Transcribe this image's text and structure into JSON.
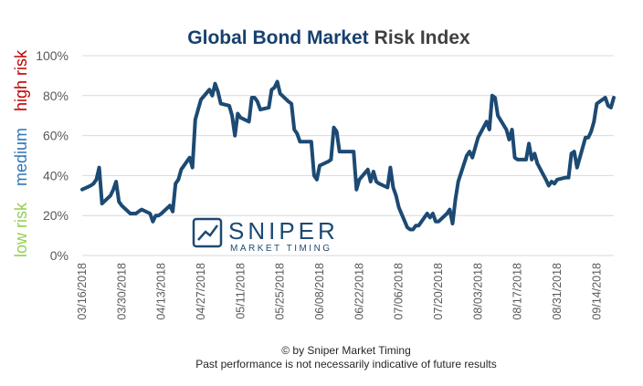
{
  "chart_data": {
    "type": "line",
    "title_part1": "Global Bond Market",
    "title_part2": "Risk Index",
    "ylabel_high": "high risk",
    "ylabel_medium": "medium",
    "ylabel_low": "low risk",
    "ylim": [
      0,
      100
    ],
    "y_ticks": [
      "0%",
      "20%",
      "40%",
      "60%",
      "80%",
      "100%"
    ],
    "x_ticks": [
      "03/16/2018",
      "03/30/2018",
      "04/13/2018",
      "04/27/2018",
      "05/11/2018",
      "05/25/2018",
      "06/08/2018",
      "06/22/2018",
      "07/06/2018",
      "07/20/2018",
      "08/03/2018",
      "08/17/2018",
      "08/31/2018",
      "09/14/2018"
    ],
    "grid": true,
    "colors": {
      "line": "#1c4a73",
      "title": "#17406d",
      "high": "#c00000",
      "medium": "#2e75b6",
      "low": "#92d050"
    },
    "series": [
      {
        "points": [
          [
            "2018-03-16",
            33
          ],
          [
            "2018-03-19",
            35
          ],
          [
            "2018-03-20",
            36
          ],
          [
            "2018-03-21",
            38
          ],
          [
            "2018-03-22",
            44
          ],
          [
            "2018-03-23",
            26
          ],
          [
            "2018-03-26",
            30
          ],
          [
            "2018-03-27",
            33
          ],
          [
            "2018-03-28",
            37
          ],
          [
            "2018-03-29",
            27
          ],
          [
            "2018-03-30",
            25
          ],
          [
            "2018-04-02",
            21
          ],
          [
            "2018-04-03",
            21
          ],
          [
            "2018-04-04",
            21
          ],
          [
            "2018-04-05",
            22
          ],
          [
            "2018-04-06",
            23
          ],
          [
            "2018-04-09",
            21
          ],
          [
            "2018-04-10",
            17
          ],
          [
            "2018-04-11",
            20
          ],
          [
            "2018-04-12",
            20
          ],
          [
            "2018-04-13",
            21
          ],
          [
            "2018-04-16",
            25
          ],
          [
            "2018-04-17",
            22
          ],
          [
            "2018-04-18",
            36
          ],
          [
            "2018-04-19",
            38
          ],
          [
            "2018-04-20",
            43
          ],
          [
            "2018-04-23",
            49
          ],
          [
            "2018-04-24",
            44
          ],
          [
            "2018-04-25",
            68
          ],
          [
            "2018-04-26",
            73
          ],
          [
            "2018-04-27",
            78
          ],
          [
            "2018-04-30",
            83
          ],
          [
            "2018-05-01",
            80
          ],
          [
            "2018-05-02",
            86
          ],
          [
            "2018-05-03",
            82
          ],
          [
            "2018-05-04",
            76
          ],
          [
            "2018-05-07",
            75
          ],
          [
            "2018-05-08",
            70
          ],
          [
            "2018-05-09",
            60
          ],
          [
            "2018-05-10",
            71
          ],
          [
            "2018-05-11",
            69
          ],
          [
            "2018-05-14",
            67
          ],
          [
            "2018-05-15",
            79
          ],
          [
            "2018-05-16",
            79
          ],
          [
            "2018-05-17",
            77
          ],
          [
            "2018-05-18",
            73
          ],
          [
            "2018-05-21",
            74
          ],
          [
            "2018-05-22",
            83
          ],
          [
            "2018-05-23",
            84
          ],
          [
            "2018-05-24",
            87
          ],
          [
            "2018-05-25",
            81
          ],
          [
            "2018-05-28",
            77
          ],
          [
            "2018-05-29",
            76
          ],
          [
            "2018-05-30",
            63
          ],
          [
            "2018-05-31",
            61
          ],
          [
            "2018-06-01",
            57
          ],
          [
            "2018-06-04",
            57
          ],
          [
            "2018-06-05",
            57
          ],
          [
            "2018-06-06",
            40
          ],
          [
            "2018-06-07",
            38
          ],
          [
            "2018-06-08",
            45
          ],
          [
            "2018-06-11",
            47
          ],
          [
            "2018-06-12",
            48
          ],
          [
            "2018-06-13",
            64
          ],
          [
            "2018-06-14",
            62
          ],
          [
            "2018-06-15",
            52
          ],
          [
            "2018-06-18",
            52
          ],
          [
            "2018-06-19",
            52
          ],
          [
            "2018-06-20",
            52
          ],
          [
            "2018-06-21",
            33
          ],
          [
            "2018-06-22",
            38
          ],
          [
            "2018-06-25",
            43
          ],
          [
            "2018-06-26",
            37
          ],
          [
            "2018-06-27",
            42
          ],
          [
            "2018-06-28",
            37
          ],
          [
            "2018-06-29",
            36
          ],
          [
            "2018-07-02",
            34
          ],
          [
            "2018-07-03",
            44
          ],
          [
            "2018-07-04",
            34
          ],
          [
            "2018-07-05",
            30
          ],
          [
            "2018-07-06",
            24
          ],
          [
            "2018-07-09",
            14
          ],
          [
            "2018-07-10",
            13
          ],
          [
            "2018-07-11",
            13
          ],
          [
            "2018-07-12",
            15
          ],
          [
            "2018-07-13",
            15
          ],
          [
            "2018-07-16",
            21
          ],
          [
            "2018-07-17",
            19
          ],
          [
            "2018-07-18",
            21
          ],
          [
            "2018-07-19",
            17
          ],
          [
            "2018-07-20",
            17
          ],
          [
            "2018-07-23",
            21
          ],
          [
            "2018-07-24",
            23
          ],
          [
            "2018-07-25",
            16
          ],
          [
            "2018-07-26",
            28
          ],
          [
            "2018-07-27",
            37
          ],
          [
            "2018-07-30",
            50
          ],
          [
            "2018-07-31",
            52
          ],
          [
            "2018-08-01",
            49
          ],
          [
            "2018-08-02",
            54
          ],
          [
            "2018-08-03",
            59
          ],
          [
            "2018-08-06",
            67
          ],
          [
            "2018-08-07",
            63
          ],
          [
            "2018-08-08",
            80
          ],
          [
            "2018-08-09",
            79
          ],
          [
            "2018-08-10",
            70
          ],
          [
            "2018-08-13",
            63
          ],
          [
            "2018-08-14",
            58
          ],
          [
            "2018-08-15",
            63
          ],
          [
            "2018-08-16",
            49
          ],
          [
            "2018-08-17",
            48
          ],
          [
            "2018-08-20",
            48
          ],
          [
            "2018-08-21",
            56
          ],
          [
            "2018-08-22",
            48
          ],
          [
            "2018-08-23",
            51
          ],
          [
            "2018-08-24",
            46
          ],
          [
            "2018-08-27",
            38
          ],
          [
            "2018-08-28",
            35
          ],
          [
            "2018-08-29",
            37
          ],
          [
            "2018-08-30",
            36
          ],
          [
            "2018-08-31",
            38
          ],
          [
            "2018-09-03",
            39
          ],
          [
            "2018-09-04",
            39
          ],
          [
            "2018-09-05",
            51
          ],
          [
            "2018-09-06",
            52
          ],
          [
            "2018-09-07",
            44
          ],
          [
            "2018-09-10",
            59
          ],
          [
            "2018-09-11",
            59
          ],
          [
            "2018-09-12",
            62
          ],
          [
            "2018-09-13",
            67
          ],
          [
            "2018-09-14",
            76
          ],
          [
            "2018-09-17",
            79
          ],
          [
            "2018-09-18",
            75
          ],
          [
            "2018-09-19",
            74
          ],
          [
            "2018-09-20",
            79
          ]
        ]
      }
    ]
  },
  "watermark": {
    "brand": "SNIPER",
    "tagline": "MARKET TIMING"
  },
  "footer": {
    "copyright": "© by Sniper Market Timing",
    "disclaimer": "Past performance is not necessarily indicative of future results"
  }
}
